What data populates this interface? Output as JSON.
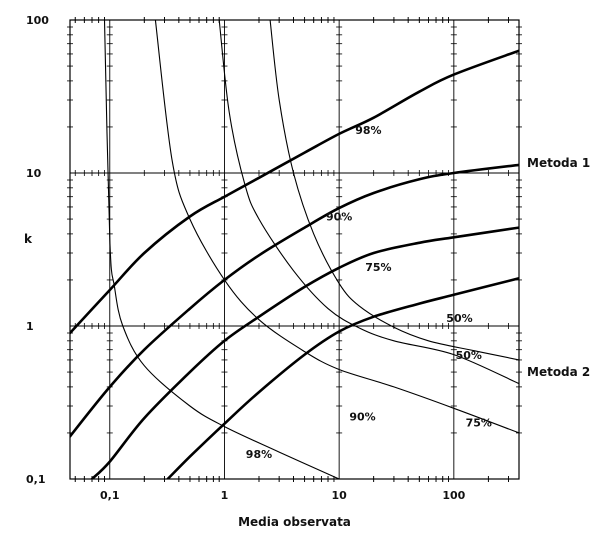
{
  "chart_data": {
    "type": "line",
    "title": "",
    "xlabel": "Media observata",
    "ylabel": "k",
    "x_scale": "log",
    "y_scale": "log",
    "xlim": [
      0.045,
      370
    ],
    "ylim": [
      0.1,
      100
    ],
    "x_ticks": [
      {
        "value": 0.1,
        "label": "0,1"
      },
      {
        "value": 1,
        "label": "1"
      },
      {
        "value": 10,
        "label": "10"
      },
      {
        "value": 100,
        "label": "100"
      }
    ],
    "y_ticks": [
      {
        "value": 0.1,
        "label": "0,1"
      },
      {
        "value": 1,
        "label": "1"
      },
      {
        "value": 10,
        "label": "10"
      },
      {
        "value": 100,
        "label": "100"
      }
    ],
    "grid": true,
    "groups": [
      {
        "label": "Metoda 1",
        "line_weight": "thick"
      },
      {
        "label": "Metoda 2",
        "line_weight": "thin"
      }
    ],
    "series": [
      {
        "group": "Metoda 1",
        "label": "98%",
        "points": [
          [
            0.045,
            0.9
          ],
          [
            0.1,
            1.72
          ],
          [
            0.2,
            3.0
          ],
          [
            0.5,
            5.2
          ],
          [
            1,
            7.0
          ],
          [
            2,
            9.3
          ],
          [
            5,
            13.6
          ],
          [
            10,
            18
          ],
          [
            20,
            23
          ],
          [
            50,
            34
          ],
          [
            100,
            44
          ],
          [
            370,
            63
          ]
        ]
      },
      {
        "group": "Metoda 1",
        "label": "90%",
        "points": [
          [
            0.045,
            0.19
          ],
          [
            0.1,
            0.4
          ],
          [
            0.2,
            0.7
          ],
          [
            0.5,
            1.3
          ],
          [
            1,
            2.0
          ],
          [
            2,
            2.9
          ],
          [
            5,
            4.4
          ],
          [
            10,
            5.9
          ],
          [
            20,
            7.4
          ],
          [
            50,
            9.1
          ],
          [
            100,
            10.0
          ],
          [
            370,
            11.3
          ]
        ]
      },
      {
        "group": "Metoda 1",
        "label": "75%",
        "points": [
          [
            0.07,
            0.1
          ],
          [
            0.1,
            0.13
          ],
          [
            0.2,
            0.25
          ],
          [
            0.5,
            0.5
          ],
          [
            1,
            0.8
          ],
          [
            2,
            1.15
          ],
          [
            5,
            1.8
          ],
          [
            10,
            2.4
          ],
          [
            20,
            3.0
          ],
          [
            50,
            3.5
          ],
          [
            100,
            3.8
          ],
          [
            370,
            4.4
          ]
        ]
      },
      {
        "group": "Metoda 1",
        "label": "50%",
        "points": [
          [
            0.32,
            0.1
          ],
          [
            0.5,
            0.14
          ],
          [
            1,
            0.23
          ],
          [
            2,
            0.37
          ],
          [
            5,
            0.65
          ],
          [
            10,
            0.92
          ],
          [
            20,
            1.15
          ],
          [
            50,
            1.4
          ],
          [
            100,
            1.6
          ],
          [
            370,
            2.05
          ]
        ]
      },
      {
        "group": "Metoda 2",
        "label": "98%",
        "points": [
          [
            0.09,
            100
          ],
          [
            0.1,
            3.7
          ],
          [
            0.11,
            1.8
          ],
          [
            0.13,
            1.0
          ],
          [
            0.2,
            0.55
          ],
          [
            0.5,
            0.3
          ],
          [
            1,
            0.22
          ],
          [
            3,
            0.15
          ],
          [
            10,
            0.1
          ]
        ]
      },
      {
        "group": "Metoda 2",
        "label": "90%",
        "points": [
          [
            0.25,
            100
          ],
          [
            0.35,
            12
          ],
          [
            0.5,
            5
          ],
          [
            1,
            2.0
          ],
          [
            2,
            1.1
          ],
          [
            5,
            0.68
          ],
          [
            10,
            0.52
          ],
          [
            30,
            0.4
          ],
          [
            100,
            0.29
          ],
          [
            370,
            0.2
          ]
        ]
      },
      {
        "group": "Metoda 2",
        "label": "75%",
        "points": [
          [
            0.9,
            100
          ],
          [
            1.1,
            25
          ],
          [
            1.5,
            8.5
          ],
          [
            2,
            5
          ],
          [
            4,
            2.3
          ],
          [
            8,
            1.3
          ],
          [
            15,
            0.97
          ],
          [
            30,
            0.8
          ],
          [
            100,
            0.65
          ],
          [
            370,
            0.42
          ]
        ]
      },
      {
        "group": "Metoda 2",
        "label": "50%",
        "points": [
          [
            2.5,
            100
          ],
          [
            3,
            30
          ],
          [
            4,
            10
          ],
          [
            6,
            4
          ],
          [
            10,
            1.9
          ],
          [
            15,
            1.35
          ],
          [
            30,
            0.98
          ],
          [
            60,
            0.8
          ],
          [
            150,
            0.69
          ],
          [
            370,
            0.6
          ]
        ]
      }
    ],
    "curve_labels": [
      {
        "text": "98%",
        "x": 18,
        "y": 18
      },
      {
        "text": "90%",
        "x": 10,
        "y": 4.9
      },
      {
        "text": "75%",
        "x": 22,
        "y": 2.28
      },
      {
        "text": "50%",
        "x": 112,
        "y": 1.06
      },
      {
        "text": "50%",
        "x": 135,
        "y": 0.61
      },
      {
        "text": "90%",
        "x": 16,
        "y": 0.242
      },
      {
        "text": "75%",
        "x": 165,
        "y": 0.221
      },
      {
        "text": "98%",
        "x": 2,
        "y": 0.137
      }
    ]
  }
}
